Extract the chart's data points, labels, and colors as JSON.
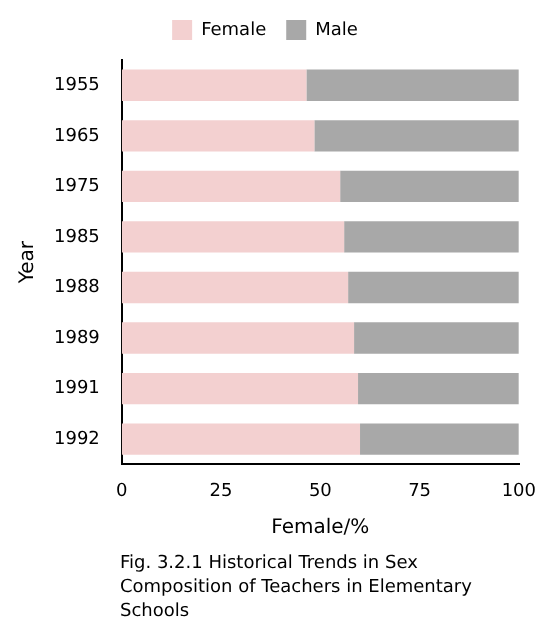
{
  "chart_data": {
    "type": "bar",
    "orientation": "horizontal",
    "stacked": true,
    "title": "Fig. 3.2.1 Historical Trends in Sex Composition of Teachers in Elementary Schools",
    "xlabel": "Female/%",
    "ylabel": "Year",
    "categories": [
      "1955",
      "1965",
      "1975",
      "1985",
      "1988",
      "1989",
      "1991",
      "1992"
    ],
    "series": [
      {
        "name": "Female",
        "color": "#f3d0d0",
        "values": [
          46.5,
          48.5,
          55,
          56,
          57,
          58.5,
          59.5,
          60
        ]
      },
      {
        "name": "Male",
        "color": "#a8a8a8",
        "values": [
          53.5,
          51.5,
          45,
          44,
          43,
          41.5,
          40.5,
          40
        ]
      }
    ],
    "xlim": [
      0,
      100
    ],
    "xticks": [
      0,
      25,
      50,
      75,
      100
    ],
    "grid": false,
    "legend": "top"
  }
}
